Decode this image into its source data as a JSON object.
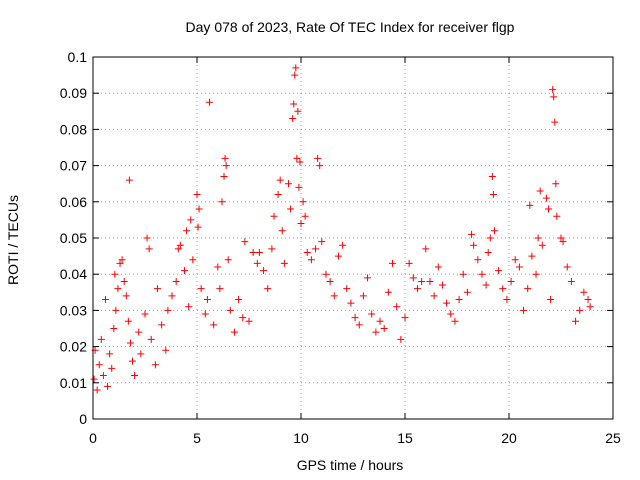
{
  "chart_data": {
    "type": "scatter",
    "title": "Day 078 of 2023, Rate Of TEC Index for receiver flgp",
    "xlabel": "GPS time / hours",
    "ylabel": "ROTI / TECUs",
    "xlim": [
      0,
      25
    ],
    "ylim": [
      0,
      0.1
    ],
    "xticks": [
      0,
      5,
      10,
      15,
      20,
      25
    ],
    "yticks": [
      0,
      0.01,
      0.02,
      0.03,
      0.04,
      0.05,
      0.06,
      0.07,
      0.08,
      0.09,
      0.1
    ],
    "xtick_labels": [
      "0",
      "5",
      "10",
      "15",
      "20",
      "25"
    ],
    "ytick_labels": [
      "0",
      "0.01",
      "0.02",
      "0.03",
      "0.04",
      "0.05",
      "0.06",
      "0.07",
      "0.08",
      "0.09",
      "0.1"
    ],
    "grid": true,
    "marker": "+",
    "color": "#ff0000",
    "series": [
      {
        "name": "ROTI",
        "points": [
          [
            0.05,
            0.011
          ],
          [
            0.1,
            0.019
          ],
          [
            0.2,
            0.008
          ],
          [
            0.3,
            0.015
          ],
          [
            0.4,
            0.022
          ],
          [
            0.5,
            0.012
          ],
          [
            0.6,
            0.033
          ],
          [
            0.7,
            0.009
          ],
          [
            0.8,
            0.018
          ],
          [
            0.9,
            0.014
          ],
          [
            1.0,
            0.025
          ],
          [
            1.05,
            0.04
          ],
          [
            1.1,
            0.03
          ],
          [
            1.2,
            0.036
          ],
          [
            1.3,
            0.043
          ],
          [
            1.4,
            0.044
          ],
          [
            1.5,
            0.038
          ],
          [
            1.6,
            0.034
          ],
          [
            1.7,
            0.027
          ],
          [
            1.75,
            0.066
          ],
          [
            1.8,
            0.021
          ],
          [
            1.9,
            0.016
          ],
          [
            2.0,
            0.012
          ],
          [
            2.2,
            0.024
          ],
          [
            2.3,
            0.018
          ],
          [
            2.5,
            0.029
          ],
          [
            2.6,
            0.05
          ],
          [
            2.7,
            0.047
          ],
          [
            2.8,
            0.022
          ],
          [
            3.0,
            0.015
          ],
          [
            3.1,
            0.036
          ],
          [
            3.3,
            0.026
          ],
          [
            3.5,
            0.019
          ],
          [
            3.6,
            0.03
          ],
          [
            3.8,
            0.034
          ],
          [
            4.0,
            0.038
          ],
          [
            4.1,
            0.047
          ],
          [
            4.2,
            0.048
          ],
          [
            4.4,
            0.041
          ],
          [
            4.5,
            0.052
          ],
          [
            4.6,
            0.031
          ],
          [
            4.7,
            0.055
          ],
          [
            4.8,
            0.044
          ],
          [
            5.0,
            0.062
          ],
          [
            5.05,
            0.053
          ],
          [
            5.1,
            0.058
          ],
          [
            5.2,
            0.036
          ],
          [
            5.4,
            0.029
          ],
          [
            5.5,
            0.033
          ],
          [
            5.6,
            0.0875
          ],
          [
            5.8,
            0.026
          ],
          [
            6.0,
            0.042
          ],
          [
            6.1,
            0.036
          ],
          [
            6.2,
            0.06
          ],
          [
            6.3,
            0.067
          ],
          [
            6.35,
            0.072
          ],
          [
            6.4,
            0.07
          ],
          [
            6.5,
            0.044
          ],
          [
            6.6,
            0.03
          ],
          [
            6.8,
            0.024
          ],
          [
            7.0,
            0.033
          ],
          [
            7.2,
            0.028
          ],
          [
            7.3,
            0.049
          ],
          [
            7.5,
            0.027
          ],
          [
            7.7,
            0.046
          ],
          [
            7.9,
            0.043
          ],
          [
            8.0,
            0.046
          ],
          [
            8.2,
            0.041
          ],
          [
            8.4,
            0.036
          ],
          [
            8.6,
            0.047
          ],
          [
            8.7,
            0.056
          ],
          [
            8.9,
            0.062
          ],
          [
            9.0,
            0.066
          ],
          [
            9.1,
            0.052
          ],
          [
            9.2,
            0.043
          ],
          [
            9.4,
            0.065
          ],
          [
            9.5,
            0.058
          ],
          [
            9.6,
            0.083
          ],
          [
            9.65,
            0.087
          ],
          [
            9.7,
            0.095
          ],
          [
            9.75,
            0.097
          ],
          [
            9.8,
            0.072
          ],
          [
            9.85,
            0.085
          ],
          [
            9.9,
            0.064
          ],
          [
            9.95,
            0.071
          ],
          [
            10.0,
            0.054
          ],
          [
            10.1,
            0.06
          ],
          [
            10.2,
            0.056
          ],
          [
            10.3,
            0.046
          ],
          [
            10.5,
            0.044
          ],
          [
            10.7,
            0.047
          ],
          [
            10.8,
            0.072
          ],
          [
            10.9,
            0.07
          ],
          [
            11.0,
            0.049
          ],
          [
            11.2,
            0.04
          ],
          [
            11.4,
            0.038
          ],
          [
            11.6,
            0.034
          ],
          [
            11.8,
            0.045
          ],
          [
            12.0,
            0.048
          ],
          [
            12.2,
            0.036
          ],
          [
            12.4,
            0.032
          ],
          [
            12.6,
            0.028
          ],
          [
            12.8,
            0.026
          ],
          [
            13.0,
            0.034
          ],
          [
            13.2,
            0.039
          ],
          [
            13.4,
            0.029
          ],
          [
            13.6,
            0.024
          ],
          [
            13.8,
            0.027
          ],
          [
            14.0,
            0.025
          ],
          [
            14.2,
            0.035
          ],
          [
            14.4,
            0.043
          ],
          [
            14.6,
            0.031
          ],
          [
            14.8,
            0.022
          ],
          [
            15.0,
            0.028
          ],
          [
            15.2,
            0.043
          ],
          [
            15.4,
            0.039
          ],
          [
            15.6,
            0.036
          ],
          [
            15.8,
            0.038
          ],
          [
            16.0,
            0.047
          ],
          [
            16.2,
            0.038
          ],
          [
            16.4,
            0.034
          ],
          [
            16.6,
            0.042
          ],
          [
            16.8,
            0.037
          ],
          [
            17.0,
            0.032
          ],
          [
            17.2,
            0.029
          ],
          [
            17.4,
            0.027
          ],
          [
            17.6,
            0.033
          ],
          [
            17.8,
            0.04
          ],
          [
            18.0,
            0.035
          ],
          [
            18.2,
            0.051
          ],
          [
            18.3,
            0.048
          ],
          [
            18.5,
            0.044
          ],
          [
            18.7,
            0.04
          ],
          [
            18.9,
            0.037
          ],
          [
            19.0,
            0.046
          ],
          [
            19.1,
            0.05
          ],
          [
            19.2,
            0.067
          ],
          [
            19.25,
            0.062
          ],
          [
            19.3,
            0.052
          ],
          [
            19.5,
            0.041
          ],
          [
            19.7,
            0.036
          ],
          [
            19.9,
            0.033
          ],
          [
            20.1,
            0.038
          ],
          [
            20.3,
            0.044
          ],
          [
            20.5,
            0.042
          ],
          [
            20.7,
            0.03
          ],
          [
            20.9,
            0.036
          ],
          [
            21.0,
            0.059
          ],
          [
            21.1,
            0.045
          ],
          [
            21.3,
            0.04
          ],
          [
            21.4,
            0.05
          ],
          [
            21.5,
            0.063
          ],
          [
            21.6,
            0.048
          ],
          [
            21.8,
            0.061
          ],
          [
            21.9,
            0.058
          ],
          [
            22.0,
            0.033
          ],
          [
            22.1,
            0.091
          ],
          [
            22.15,
            0.089
          ],
          [
            22.2,
            0.082
          ],
          [
            22.25,
            0.065
          ],
          [
            22.3,
            0.056
          ],
          [
            22.5,
            0.05
          ],
          [
            22.6,
            0.049
          ],
          [
            22.8,
            0.042
          ],
          [
            23.0,
            0.038
          ],
          [
            23.2,
            0.027
          ],
          [
            23.4,
            0.03
          ],
          [
            23.6,
            0.035
          ],
          [
            23.8,
            0.033
          ],
          [
            23.9,
            0.031
          ]
        ]
      }
    ]
  }
}
